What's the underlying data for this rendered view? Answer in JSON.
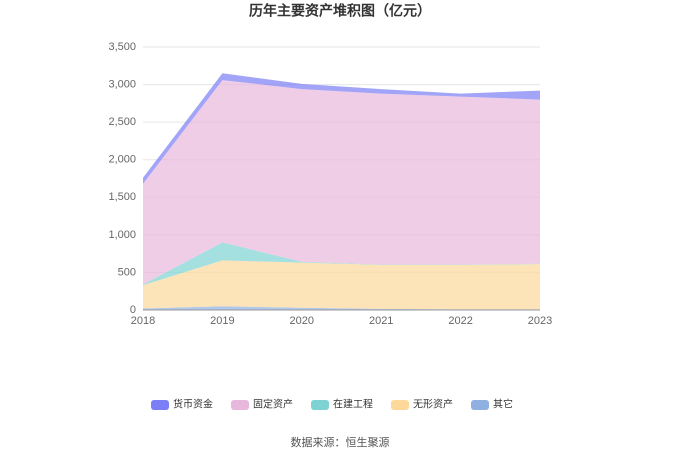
{
  "chart_data": {
    "type": "stacked-area",
    "title": "历年主要资产堆积图（亿元）",
    "categories": [
      "2018",
      "2019",
      "2020",
      "2021",
      "2022",
      "2023"
    ],
    "series": [
      {
        "name": "其它",
        "color": "#8fb0e0",
        "values": [
          20,
          50,
          30,
          15,
          10,
          10
        ]
      },
      {
        "name": "无形资产",
        "color": "#fcd99a",
        "values": [
          310,
          610,
          600,
          585,
          590,
          600
        ]
      },
      {
        "name": "在建工程",
        "color": "#7dd3d3",
        "values": [
          10,
          240,
          10,
          5,
          5,
          5
        ]
      },
      {
        "name": "固定资产",
        "color": "#e8b8dc",
        "values": [
          1340,
          2160,
          2300,
          2275,
          2235,
          2185
        ]
      },
      {
        "name": "货币资金",
        "color": "#7b7ef5",
        "values": [
          80,
          90,
          70,
          60,
          40,
          120
        ]
      }
    ],
    "ylim": [
      0,
      3500
    ],
    "yticks": [
      0,
      500,
      {
        "value": 1000,
        "label": "1,000"
      },
      {
        "value": 1500,
        "label": "1,500"
      },
      {
        "value": 2000,
        "label": "2,000"
      },
      {
        "value": 2500,
        "label": "2,500"
      },
      {
        "value": 3000,
        "label": "3,000"
      },
      {
        "value": 3500,
        "label": "3,500"
      }
    ],
    "grid": true,
    "legend_order": [
      4,
      3,
      2,
      1,
      0
    ],
    "source": "数据来源：恒生聚源"
  }
}
